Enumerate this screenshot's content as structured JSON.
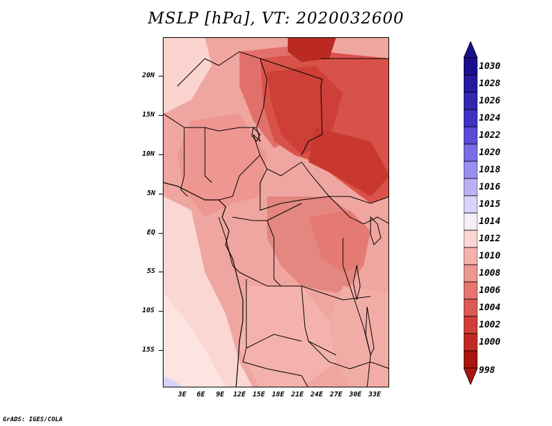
{
  "title": "MSLP [hPa], VT: 2020032600",
  "credit": "GrADS: IGES/COLA",
  "lat_labels": [
    "20N",
    "15N",
    "10N",
    "5N",
    "EQ",
    "5S",
    "10S",
    "15S"
  ],
  "lon_labels": [
    "3E",
    "6E",
    "9E",
    "12E",
    "15E",
    "18E",
    "21E",
    "24E",
    "27E",
    "30E",
    "33E"
  ],
  "colorbar": {
    "labels": [
      "1030",
      "1028",
      "1026",
      "1024",
      "1022",
      "1020",
      "1018",
      "1016",
      "1015",
      "1014",
      "1012",
      "1010",
      "1008",
      "1006",
      "1004",
      "1002",
      "1000",
      "998"
    ],
    "colors": [
      "#1a0f8c",
      "#251a9e",
      "#3129b0",
      "#4033c4",
      "#5a4cd6",
      "#7a6be6",
      "#9a8ef0",
      "#bbb2f5",
      "#d8d4fa",
      "#f5f0f5",
      "#fbd7d3",
      "#f5b3ad",
      "#ee9690",
      "#e7766f",
      "#dc5a52",
      "#d13f37",
      "#c02a22",
      "#a8160f"
    ]
  },
  "map_fields": {
    "base_color": "#f0a6a0",
    "high_pressure_color": "#fde4e1",
    "low_pressure_color": "#c9302a"
  }
}
